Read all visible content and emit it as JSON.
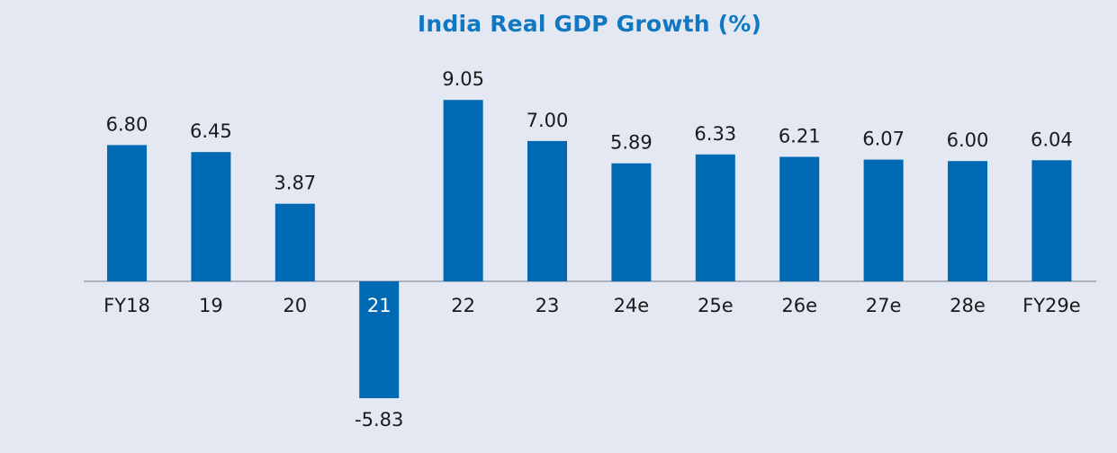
{
  "colors": {
    "background": "#e4e8f3",
    "bar": "#0069b4",
    "title": "#0f78c1",
    "axis": "#8a8f99",
    "text": "#1a1a1a",
    "text_on_bar": "#ffffff"
  },
  "chart_data": {
    "type": "bar",
    "title": "India Real GDP Growth (%)",
    "xlabel": "",
    "ylabel": "",
    "categories": [
      "FY18",
      "19",
      "20",
      "21",
      "22",
      "23",
      "24e",
      "25e",
      "26e",
      "27e",
      "28e",
      "FY29e"
    ],
    "values": [
      6.8,
      6.45,
      3.87,
      -5.83,
      9.05,
      7.0,
      5.89,
      6.33,
      6.21,
      6.07,
      6.0,
      6.04
    ],
    "value_labels": [
      "6.80",
      "6.45",
      "3.87",
      "-5.83",
      "9.05",
      "7.00",
      "5.89",
      "6.33",
      "6.21",
      "6.07",
      "6.00",
      "6.04"
    ],
    "grid": false,
    "legend": "none"
  }
}
